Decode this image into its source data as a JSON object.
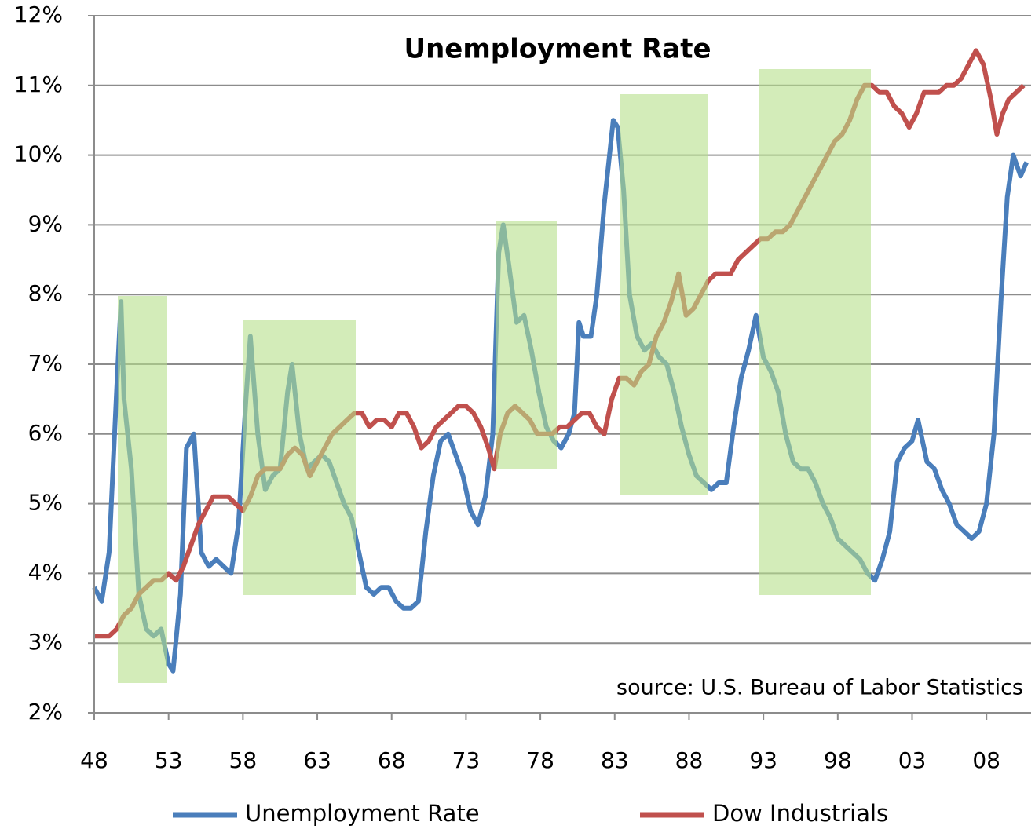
{
  "chart_data": {
    "type": "line",
    "title": "Unemployment Rate",
    "annotation": "source: U.S. Bureau of Labor Statistics",
    "xlim": [
      48,
      111
    ],
    "xticks": [
      48,
      53,
      58,
      63,
      68,
      73,
      78,
      83,
      88,
      93,
      98,
      {
        "value": 103,
        "label": "03"
      },
      {
        "value": 108,
        "label": "08"
      }
    ],
    "ylim": [
      2,
      12
    ],
    "yticks": [
      {
        "value": 2,
        "label": "2%"
      },
      {
        "value": 3,
        "label": "3%"
      },
      {
        "value": 4,
        "label": "4%"
      },
      {
        "value": 5,
        "label": "5%"
      },
      {
        "value": 6,
        "label": "6%"
      },
      {
        "value": 7,
        "label": "7%"
      },
      {
        "value": 8,
        "label": "8%"
      },
      {
        "value": 9,
        "label": "9%"
      },
      {
        "value": 10,
        "label": "10%"
      },
      {
        "value": 11,
        "label": "11%"
      },
      {
        "value": 12,
        "label": "12%"
      }
    ],
    "grid": true,
    "legend": "bottom",
    "series": [
      {
        "name": "Unemployment Rate",
        "color": "#4a7ebb",
        "x": [
          48.0,
          48.5,
          49.0,
          49.5,
          49.8,
          50.0,
          50.5,
          51.0,
          51.5,
          52.0,
          52.5,
          53.0,
          53.3,
          53.8,
          54.2,
          54.7,
          55.2,
          55.7,
          56.2,
          56.7,
          57.2,
          57.7,
          58.2,
          58.5,
          59.0,
          59.5,
          60.0,
          60.5,
          61.0,
          61.3,
          61.8,
          62.3,
          62.8,
          63.3,
          63.8,
          64.3,
          64.8,
          65.3,
          65.8,
          66.3,
          66.8,
          67.3,
          67.8,
          68.3,
          68.8,
          69.3,
          69.8,
          70.3,
          70.8,
          71.3,
          71.8,
          72.3,
          72.8,
          73.3,
          73.8,
          74.3,
          74.8,
          75.2,
          75.5,
          75.9,
          76.4,
          76.9,
          77.4,
          77.9,
          78.4,
          78.9,
          79.4,
          79.9,
          80.3,
          80.6,
          80.9,
          81.4,
          81.8,
          82.3,
          82.9,
          83.2,
          83.6,
          84.0,
          84.5,
          85.0,
          85.5,
          86.0,
          86.5,
          87.0,
          87.5,
          88.0,
          88.5,
          89.0,
          89.5,
          90.0,
          90.5,
          91.0,
          91.5,
          92.0,
          92.5,
          93.0,
          93.5,
          94.0,
          94.5,
          95.0,
          95.5,
          96.0,
          96.5,
          97.0,
          97.5,
          98.0,
          98.5,
          99.0,
          99.5,
          100.0,
          100.5,
          101.0,
          101.5,
          102.0,
          102.5,
          103.0,
          103.4,
          104.0,
          104.5,
          105.0,
          105.5,
          106.0,
          106.5,
          107.0,
          107.5,
          108.0,
          108.5,
          109.0,
          109.4,
          109.8,
          110.3,
          110.7
        ],
        "values": [
          3.8,
          3.6,
          4.3,
          6.6,
          7.9,
          6.5,
          5.5,
          3.7,
          3.2,
          3.1,
          3.2,
          2.7,
          2.6,
          3.7,
          5.8,
          6.0,
          4.3,
          4.1,
          4.2,
          4.1,
          4.0,
          4.7,
          6.5,
          7.4,
          6.0,
          5.2,
          5.4,
          5.5,
          6.6,
          7.0,
          6.0,
          5.5,
          5.6,
          5.7,
          5.6,
          5.3,
          5.0,
          4.8,
          4.3,
          3.8,
          3.7,
          3.8,
          3.8,
          3.6,
          3.5,
          3.5,
          3.6,
          4.6,
          5.4,
          5.9,
          6.0,
          5.7,
          5.4,
          4.9,
          4.7,
          5.1,
          6.0,
          8.6,
          9.0,
          8.4,
          7.6,
          7.7,
          7.2,
          6.6,
          6.1,
          5.9,
          5.8,
          6.0,
          6.3,
          7.6,
          7.4,
          7.4,
          8.0,
          9.3,
          10.5,
          10.4,
          9.5,
          8.0,
          7.4,
          7.2,
          7.3,
          7.1,
          7.0,
          6.6,
          6.1,
          5.7,
          5.4,
          5.3,
          5.2,
          5.3,
          5.3,
          6.1,
          6.8,
          7.2,
          7.7,
          7.1,
          6.9,
          6.6,
          6.0,
          5.6,
          5.5,
          5.5,
          5.3,
          5.0,
          4.8,
          4.5,
          4.4,
          4.3,
          4.2,
          4.0,
          3.9,
          4.2,
          4.6,
          5.6,
          5.8,
          5.9,
          6.2,
          5.6,
          5.5,
          5.2,
          5.0,
          4.7,
          4.6,
          4.5,
          4.6,
          5.0,
          6.0,
          8.0,
          9.4,
          10.0,
          9.7,
          9.9
        ]
      },
      {
        "name": "Dow Industrials",
        "color": "#c0504d",
        "x": [
          48.0,
          48.5,
          49.0,
          49.5,
          50.0,
          50.5,
          51.0,
          51.5,
          52.0,
          52.5,
          53.0,
          53.5,
          54.0,
          54.5,
          55.0,
          55.5,
          56.0,
          56.5,
          57.0,
          57.5,
          58.0,
          58.5,
          59.0,
          59.5,
          60.0,
          60.5,
          61.0,
          61.5,
          62.0,
          62.5,
          63.0,
          63.5,
          64.0,
          64.5,
          65.0,
          65.5,
          66.0,
          66.5,
          67.0,
          67.5,
          68.0,
          68.5,
          69.0,
          69.5,
          70.0,
          70.5,
          71.0,
          71.5,
          72.0,
          72.5,
          73.0,
          73.5,
          74.0,
          74.5,
          74.9,
          75.3,
          75.8,
          76.3,
          76.8,
          77.3,
          77.8,
          78.3,
          78.8,
          79.3,
          79.8,
          80.3,
          80.8,
          81.3,
          81.8,
          82.3,
          82.8,
          83.3,
          83.8,
          84.3,
          84.8,
          85.3,
          85.8,
          86.3,
          86.8,
          87.3,
          87.8,
          88.3,
          88.8,
          89.3,
          89.8,
          90.3,
          90.8,
          91.3,
          91.8,
          92.3,
          92.8,
          93.3,
          93.8,
          94.3,
          94.8,
          95.3,
          95.8,
          96.3,
          96.8,
          97.3,
          97.8,
          98.3,
          98.8,
          99.3,
          99.8,
          100.3,
          100.8,
          101.3,
          101.8,
          102.3,
          102.8,
          103.3,
          103.8,
          104.3,
          104.8,
          105.3,
          105.8,
          106.3,
          106.8,
          107.3,
          107.8,
          108.3,
          108.7,
          109.1,
          109.5,
          110.0,
          110.5
        ],
        "values": [
          3.1,
          3.1,
          3.1,
          3.2,
          3.4,
          3.5,
          3.7,
          3.8,
          3.9,
          3.9,
          4.0,
          3.9,
          4.1,
          4.4,
          4.7,
          4.9,
          5.1,
          5.1,
          5.1,
          5.0,
          4.9,
          5.1,
          5.4,
          5.5,
          5.5,
          5.5,
          5.7,
          5.8,
          5.7,
          5.4,
          5.6,
          5.8,
          6.0,
          6.1,
          6.2,
          6.3,
          6.3,
          6.1,
          6.2,
          6.2,
          6.1,
          6.3,
          6.3,
          6.1,
          5.8,
          5.9,
          6.1,
          6.2,
          6.3,
          6.4,
          6.4,
          6.3,
          6.1,
          5.8,
          5.5,
          6.0,
          6.3,
          6.4,
          6.3,
          6.2,
          6.0,
          6.0,
          6.0,
          6.1,
          6.1,
          6.2,
          6.3,
          6.3,
          6.1,
          6.0,
          6.5,
          6.8,
          6.8,
          6.7,
          6.9,
          7.0,
          7.4,
          7.6,
          7.9,
          8.3,
          7.7,
          7.8,
          8.0,
          8.2,
          8.3,
          8.3,
          8.3,
          8.5,
          8.6,
          8.7,
          8.8,
          8.8,
          8.9,
          8.9,
          9.0,
          9.2,
          9.4,
          9.6,
          9.8,
          10.0,
          10.2,
          10.3,
          10.5,
          10.8,
          11.0,
          11.0,
          10.9,
          10.9,
          10.7,
          10.6,
          10.4,
          10.6,
          10.9,
          10.9,
          10.9,
          11.0,
          11.0,
          11.1,
          11.3,
          11.5,
          11.3,
          10.8,
          10.3,
          10.6,
          10.8,
          10.9,
          11.0
        ]
      }
    ]
  }
}
